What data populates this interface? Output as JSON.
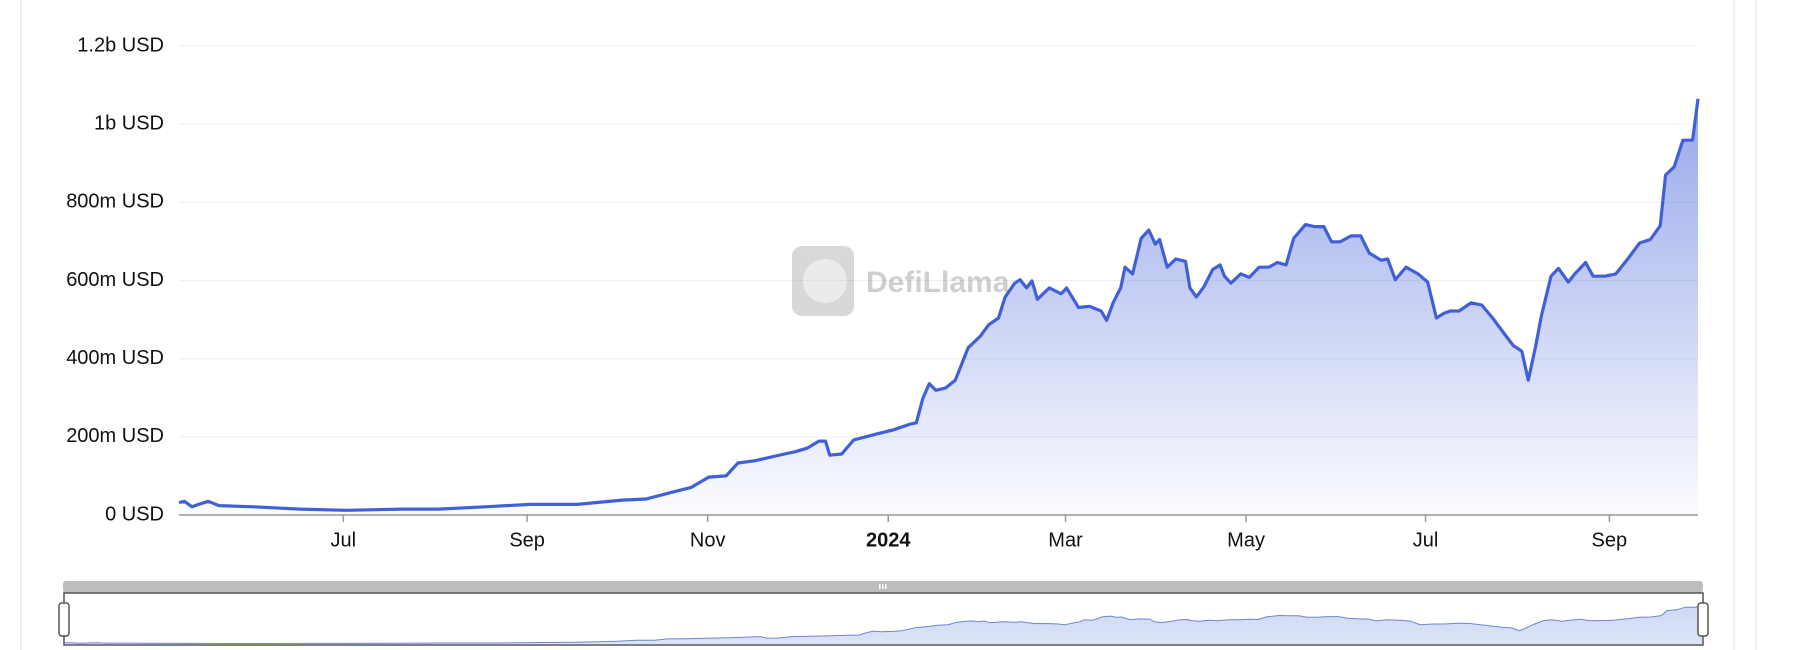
{
  "chart_data": {
    "type": "line",
    "watermark": "DefiLlama",
    "x": [
      2023.344,
      2023.349,
      2023.356,
      2023.362,
      2023.371,
      2023.381,
      2023.413,
      2023.456,
      2023.499,
      2023.552,
      2023.584,
      2023.627,
      2023.669,
      2023.712,
      2023.754,
      2023.776,
      2023.797,
      2023.818,
      2023.834,
      2023.85,
      2023.861,
      2023.877,
      2023.904,
      2023.914,
      2023.925,
      2023.936,
      2023.942,
      2023.946,
      2023.957,
      2023.968,
      2023.989,
      2024.005,
      2024.021,
      2024.026,
      2024.032,
      2024.038,
      2024.044,
      2024.053,
      2024.062,
      2024.074,
      2024.085,
      2024.093,
      2024.102,
      2024.108,
      2024.117,
      2024.122,
      2024.128,
      2024.133,
      2024.138,
      2024.149,
      2024.16,
      2024.165,
      2024.176,
      2024.186,
      2024.197,
      2024.202,
      2024.208,
      2024.215,
      2024.219,
      2024.226,
      2024.234,
      2024.241,
      2024.247,
      2024.251,
      2024.258,
      2024.266,
      2024.275,
      2024.279,
      2024.285,
      2024.292,
      2024.3,
      2024.307,
      2024.311,
      2024.317,
      2024.326,
      2024.334,
      2024.343,
      2024.352,
      2024.36,
      2024.368,
      2024.375,
      2024.386,
      2024.394,
      2024.403,
      2024.41,
      2024.418,
      2024.428,
      2024.437,
      2024.445,
      2024.456,
      2024.462,
      2024.469,
      2024.479,
      2024.49,
      2024.499,
      2024.507,
      2024.514,
      2024.52,
      2024.528,
      2024.539,
      2024.549,
      2024.559,
      2024.57,
      2024.578,
      2024.586,
      2024.592,
      2024.599,
      2024.604,
      2024.613,
      2024.62,
      2024.629,
      2024.635,
      2024.645,
      2024.652,
      2024.663,
      2024.673,
      2024.684,
      2024.695,
      2024.705,
      2024.714,
      2024.719,
      2024.727,
      2024.735,
      2024.744,
      2024.749
    ],
    "series": [
      {
        "color": "#4160d8",
        "values": [
          32000000.0,
          35000000.0,
          21000000.0,
          27000000.0,
          35000000.0,
          24000000.0,
          21000000.0,
          15000000.0,
          12000000.0,
          15000000.0,
          15000000.0,
          21000000.0,
          27000000.0,
          27000000.0,
          38000000.0,
          41000000.0,
          56000000.0,
          71000000.0,
          97000000.0,
          100000000.0,
          133000000.0,
          139000000.0,
          156000000.0,
          162000000.0,
          171000000.0,
          189000000.0,
          189000000.0,
          153000000.0,
          156000000.0,
          192000000.0,
          207000000.0,
          218000000.0,
          233000000.0,
          236000000.0,
          298000000.0,
          336000000.0,
          319000000.0,
          325000000.0,
          345000000.0,
          428000000.0,
          457000000.0,
          487000000.0,
          504000000.0,
          557000000.0,
          593000000.0,
          602000000.0,
          581000000.0,
          599000000.0,
          552000000.0,
          581000000.0,
          566000000.0,
          581000000.0,
          531000000.0,
          534000000.0,
          522000000.0,
          498000000.0,
          543000000.0,
          581000000.0,
          634000000.0,
          617000000.0,
          708000000.0,
          729000000.0,
          693000000.0,
          705000000.0,
          634000000.0,
          655000000.0,
          649000000.0,
          581000000.0,
          558000000.0,
          584000000.0,
          628000000.0,
          640000000.0,
          611000000.0,
          593000000.0,
          617000000.0,
          608000000.0,
          634000000.0,
          634000000.0,
          646000000.0,
          640000000.0,
          708000000.0,
          743000000.0,
          738000000.0,
          738000000.0,
          699000000.0,
          699000000.0,
          714000000.0,
          714000000.0,
          670000000.0,
          652000000.0,
          655000000.0,
          602000000.0,
          634000000.0,
          617000000.0,
          596000000.0,
          504000000.0,
          516000000.0,
          522000000.0,
          522000000.0,
          543000000.0,
          537000000.0,
          504000000.0,
          463000000.0,
          434000000.0,
          419000000.0,
          345000000.0,
          434000000.0,
          507000000.0,
          611000000.0,
          631000000.0,
          596000000.0,
          617000000.0,
          646000000.0,
          611000000.0,
          611000000.0,
          617000000.0,
          655000000.0,
          696000000.0,
          705000000.0,
          740000000.0,
          870000000.0,
          891000000.0,
          959000000.0,
          959000000.0,
          1065000000.0
        ]
      }
    ],
    "xlim": [
      2023.344,
      2024.749
    ],
    "xticks": [
      {
        "value": 2023.496,
        "label": "Jul"
      },
      {
        "value": 2023.666,
        "label": "Sep"
      },
      {
        "value": 2023.833,
        "label": "Nov"
      },
      {
        "value": 2024.0,
        "label": "2024"
      },
      {
        "value": 2024.164,
        "label": "Mar"
      },
      {
        "value": 2024.331,
        "label": "May"
      },
      {
        "value": 2024.497,
        "label": "Jul"
      },
      {
        "value": 2024.667,
        "label": "Sep"
      }
    ],
    "ylim": [
      0,
      1200000000.0
    ],
    "yticks": [
      {
        "value": 0,
        "label": "0 USD"
      },
      {
        "value": 200000000.0,
        "label": "200m USD"
      },
      {
        "value": 400000000.0,
        "label": "400m USD"
      },
      {
        "value": 600000000.0,
        "label": "600m USD"
      },
      {
        "value": 800000000.0,
        "label": "800m USD"
      },
      {
        "value": 1000000000.0,
        "label": "1b USD"
      },
      {
        "value": 1200000000.0,
        "label": "1.2b USD"
      }
    ],
    "grid": true
  }
}
